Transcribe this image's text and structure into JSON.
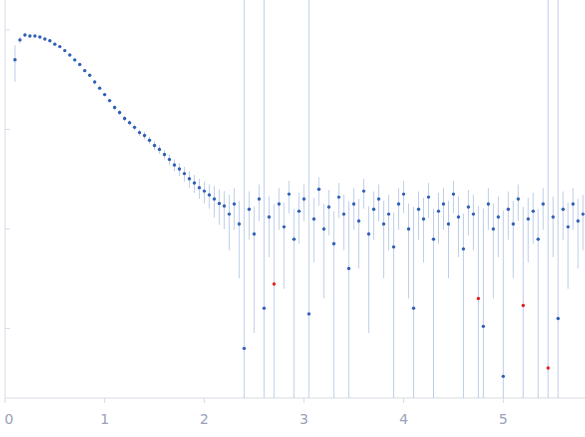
{
  "chart_data": {
    "type": "scatter",
    "log": "y",
    "tick_labels": "x",
    "grid": false,
    "xlim": [
      0,
      5.82
    ],
    "xticks": [
      0,
      1,
      2,
      3,
      4,
      5
    ],
    "ylim": [
      2e-05,
      0.2
    ],
    "yticks": [
      0.0001,
      0.001,
      0.01,
      0.1
    ],
    "series": [
      {
        "color": "#2e5fb5",
        "marker": "circle",
        "x": [
          0.1,
          0.15,
          0.2,
          0.25,
          0.3,
          0.35,
          0.4,
          0.45,
          0.5,
          0.55,
          0.6,
          0.65,
          0.7,
          0.75,
          0.8,
          0.85,
          0.9,
          0.95,
          1.0,
          1.05,
          1.1,
          1.15,
          1.2,
          1.25,
          1.3,
          1.35,
          1.4,
          1.45,
          1.5,
          1.55,
          1.6,
          1.65,
          1.7,
          1.75,
          1.8,
          1.85,
          1.9,
          1.95,
          2.0,
          2.05,
          2.1,
          2.15,
          2.2,
          2.25,
          2.3,
          2.35,
          2.4,
          2.45,
          2.5,
          2.55,
          2.6,
          2.65,
          2.75,
          2.8,
          2.85,
          2.9,
          2.95,
          3.0,
          3.05,
          3.1,
          3.15,
          3.2,
          3.25,
          3.3,
          3.35,
          3.4,
          3.45,
          3.5,
          3.55,
          3.6,
          3.65,
          3.7,
          3.75,
          3.8,
          3.85,
          3.9,
          3.95,
          4.0,
          4.05,
          4.1,
          4.15,
          4.2,
          4.25,
          4.3,
          4.35,
          4.4,
          4.45,
          4.5,
          4.55,
          4.6,
          4.65,
          4.7,
          4.8,
          4.85,
          4.9,
          4.95,
          5.0,
          5.05,
          5.1,
          5.15,
          5.25,
          5.3,
          5.35,
          5.4,
          5.5,
          5.55,
          5.6,
          5.65,
          5.7,
          5.75,
          5.8
        ],
        "values": [
          0.0501,
          0.0794,
          0.089,
          0.087,
          0.087,
          0.085,
          0.081,
          0.078,
          0.072,
          0.068,
          0.062,
          0.056,
          0.05,
          0.045,
          0.039,
          0.035,
          0.03,
          0.026,
          0.0224,
          0.0195,
          0.0166,
          0.0148,
          0.0129,
          0.0117,
          0.0105,
          0.0093,
          0.0087,
          0.0078,
          0.0069,
          0.0063,
          0.0056,
          0.005,
          0.0044,
          0.004,
          0.0036,
          0.0032,
          0.0029,
          0.0026,
          0.0024,
          0.0022,
          0.002,
          0.0018,
          0.0017,
          0.00141,
          0.00178,
          0.00112,
          6.3e-05,
          0.00158,
          0.00089,
          0.002,
          0.00016,
          0.00132,
          0.00178,
          0.00105,
          0.00224,
          0.00079,
          0.00151,
          0.002,
          0.00014,
          0.00126,
          0.00251,
          0.001,
          0.00166,
          0.00071,
          0.00209,
          0.00141,
          0.0004,
          0.00178,
          0.0012,
          0.0024,
          0.00089,
          0.00158,
          0.002,
          0.00112,
          0.00141,
          0.00066,
          0.00178,
          0.00224,
          0.001,
          0.00016,
          0.00158,
          0.00126,
          0.00209,
          0.00079,
          0.00151,
          0.00178,
          0.00112,
          0.00224,
          0.00132,
          0.00063,
          0.00166,
          0.00141,
          0.000105,
          0.00178,
          0.001,
          0.00132,
          3.3e-05,
          0.00158,
          0.00112,
          0.002,
          0.00126,
          0.00151,
          0.00079,
          0.00178,
          0.00132,
          0.000126,
          0.00158,
          0.00105,
          0.00178,
          0.0012,
          0.00141
        ],
        "errors": [
          0.02,
          0.006,
          0.003,
          0.002,
          0.002,
          0.002,
          0.002,
          0.002,
          0.002,
          0.002,
          0.0015,
          0.0015,
          0.0015,
          0.0013,
          0.0012,
          0.0011,
          0.001,
          0.001,
          0.0009,
          0.0009,
          0.0008,
          0.0008,
          0.0008,
          0.0007,
          0.0007,
          0.0007,
          0.0007,
          0.0007,
          0.0007,
          0.0006,
          0.0006,
          0.0006,
          0.0006,
          0.0006,
          0.0006,
          0.0006,
          0.0006,
          0.0006,
          0.0006,
          0.0006,
          0.0007,
          0.0007,
          0.0007,
          0.0008,
          0.0008,
          0.0008,
          0.3,
          0.0008,
          0.0008,
          0.0008,
          0.3,
          0.0008,
          0.0008,
          0.0008,
          0.0008,
          0.0008,
          0.0008,
          0.0008,
          0.3,
          0.0008,
          0.0008,
          0.0008,
          0.0008,
          0.0008,
          0.0008,
          0.0008,
          0.0015,
          0.0008,
          0.0008,
          0.0008,
          0.0008,
          0.0008,
          0.0008,
          0.0008,
          0.0008,
          0.0008,
          0.0008,
          0.0008,
          0.0008,
          0.0015,
          0.0008,
          0.0008,
          0.0008,
          0.0008,
          0.0008,
          0.0008,
          0.0008,
          0.0008,
          0.0008,
          0.0008,
          0.0008,
          0.0008,
          0.0015,
          0.0008,
          0.0008,
          0.0008,
          0.0015,
          0.0008,
          0.0008,
          0.0008,
          0.0008,
          0.0008,
          0.0008,
          0.0008,
          0.0008,
          0.3,
          0.0008,
          0.0008,
          0.0008,
          0.0008,
          0.0008
        ]
      },
      {
        "color": "#e02020",
        "marker": "circle",
        "x": [
          2.7,
          4.75,
          5.2,
          5.45
        ],
        "values": [
          0.00028,
          0.0002,
          0.00017,
          4e-05
        ],
        "errors": [
          0.0015,
          0.0015,
          0.0015,
          0.3
        ]
      }
    ]
  }
}
